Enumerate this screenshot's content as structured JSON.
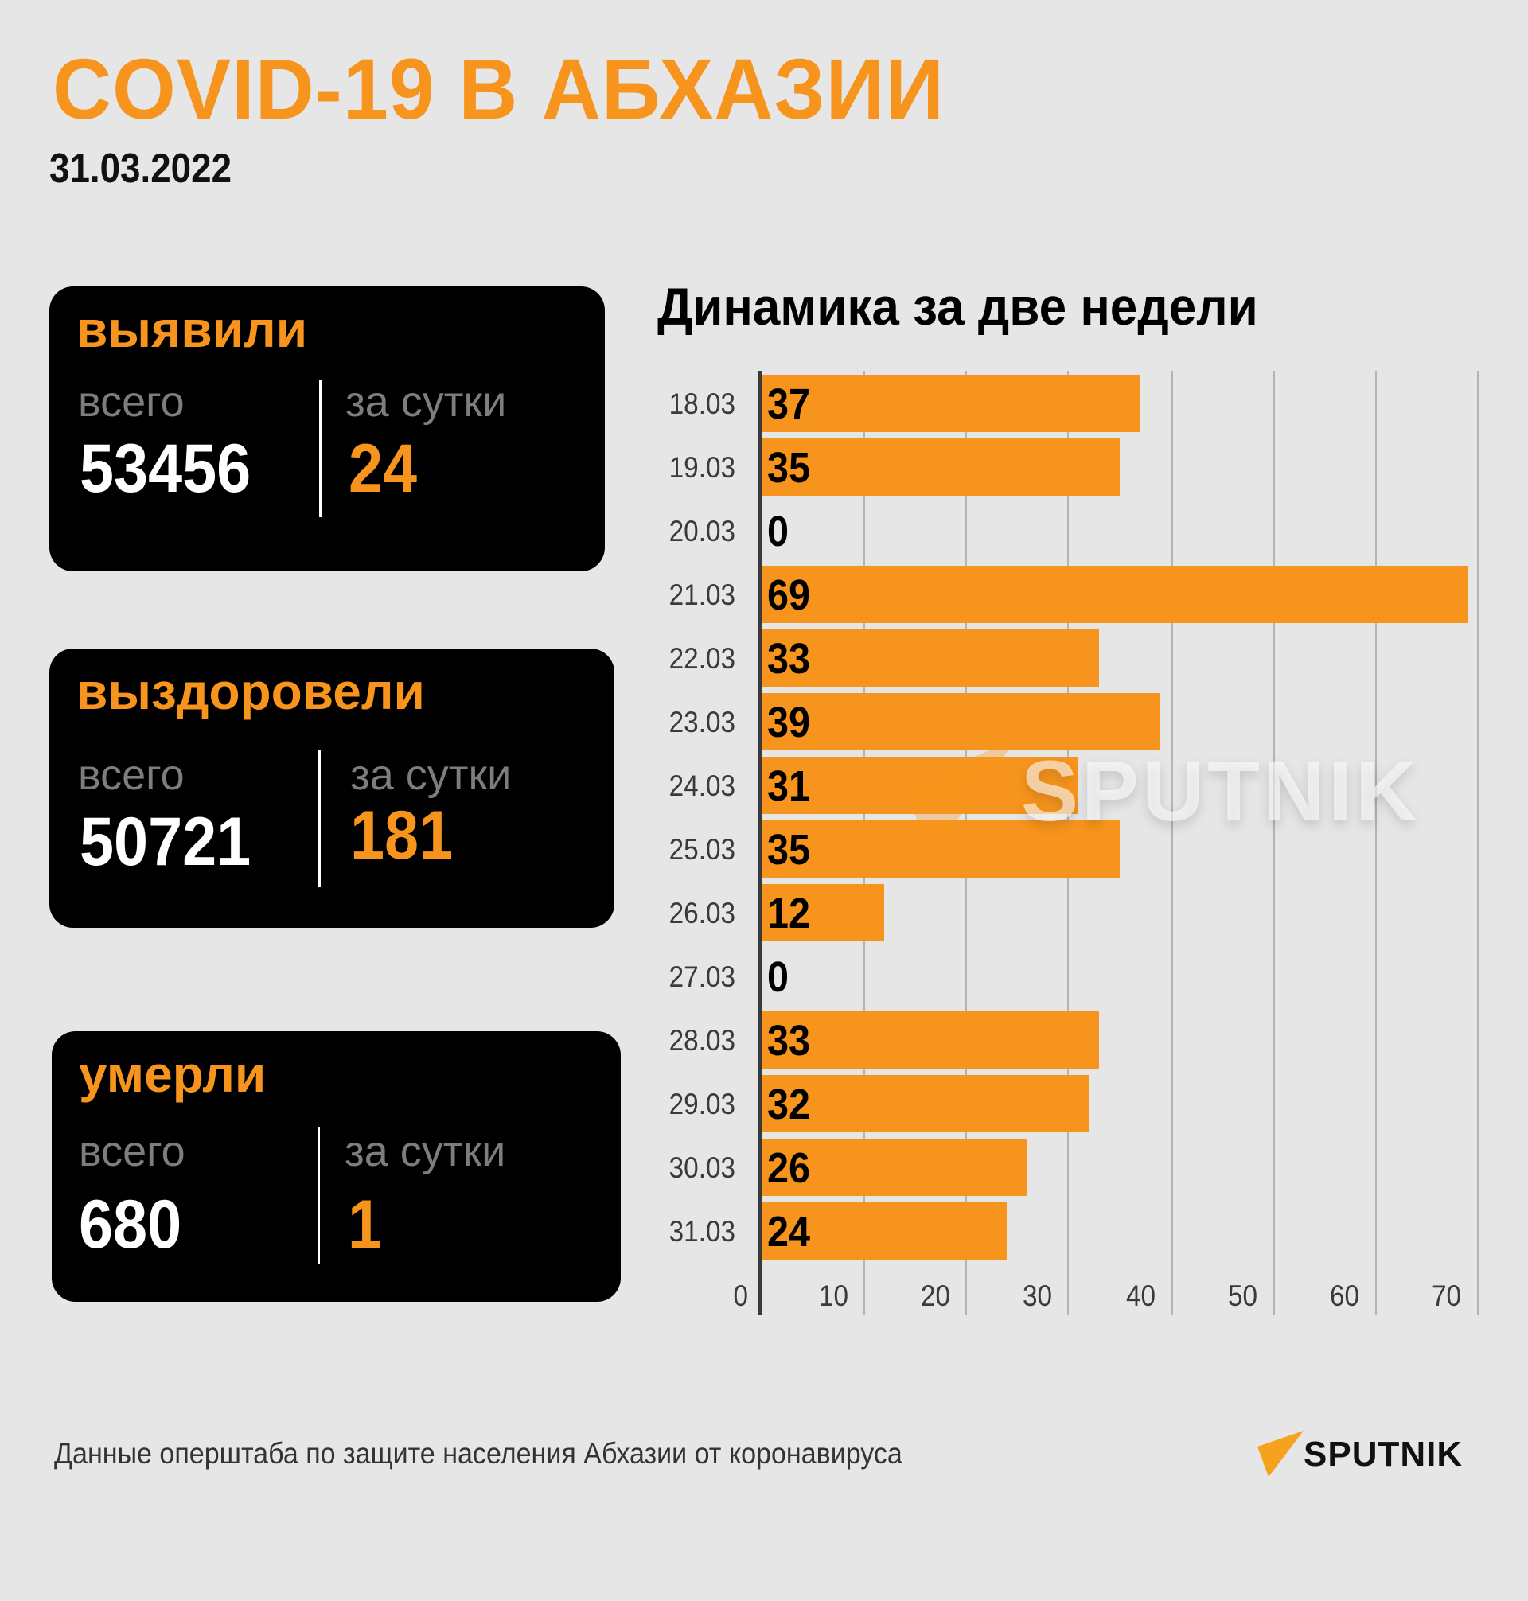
{
  "header": {
    "title": "COVID-19 В АБХАЗИИ",
    "date": "31.03.2022"
  },
  "cards": [
    {
      "title": "выявили",
      "total_label": "всего",
      "total": "53456",
      "daily_label": "за сутки",
      "daily": "24"
    },
    {
      "title": "выздоровели",
      "total_label": "всего",
      "total": "50721",
      "daily_label": "за сутки",
      "daily": "181"
    },
    {
      "title": "умерли",
      "total_label": "всего",
      "total": "680",
      "daily_label": "за сутки",
      "daily": "1"
    }
  ],
  "colors": {
    "accent": "#f7941d",
    "background": "#e6e6e6",
    "card": "#000000",
    "muted_label": "#7d7d7d"
  },
  "chart": {
    "title": "Динамика за две недели",
    "rows": [
      {
        "label": "18.03",
        "value": "37"
      },
      {
        "label": "19.03",
        "value": "35"
      },
      {
        "label": "20.03",
        "value": "0"
      },
      {
        "label": "21.03",
        "value": "69"
      },
      {
        "label": "22.03",
        "value": "33"
      },
      {
        "label": "23.03",
        "value": "39"
      },
      {
        "label": "24.03",
        "value": "31"
      },
      {
        "label": "25.03",
        "value": "35"
      },
      {
        "label": "26.03",
        "value": "12"
      },
      {
        "label": "27.03",
        "value": "0"
      },
      {
        "label": "28.03",
        "value": "33"
      },
      {
        "label": "29.03",
        "value": "32"
      },
      {
        "label": "30.03",
        "value": "26"
      },
      {
        "label": "31.03",
        "value": "24"
      }
    ],
    "ticks": [
      "0",
      "10",
      "20",
      "30",
      "40",
      "50",
      "60",
      "70"
    ]
  },
  "chart_data": {
    "type": "bar",
    "orientation": "horizontal",
    "title": "Динамика за две недели",
    "categories": [
      "18.03",
      "19.03",
      "20.03",
      "21.03",
      "22.03",
      "23.03",
      "24.03",
      "25.03",
      "26.03",
      "27.03",
      "28.03",
      "29.03",
      "30.03",
      "31.03"
    ],
    "values": [
      37,
      35,
      0,
      69,
      33,
      39,
      31,
      35,
      12,
      0,
      33,
      32,
      26,
      24
    ],
    "xlabel": "",
    "ylabel": "",
    "xlim": [
      0,
      70
    ],
    "xticks": [
      0,
      10,
      20,
      30,
      40,
      50,
      60,
      70
    ],
    "grid": true,
    "data_labels": true,
    "bar_color": "#f7941d"
  },
  "watermark": {
    "text": "SPUTNIK"
  },
  "footer": {
    "source": "Данные оперштаба по защите населения Абхазии от коронавируса",
    "logo_text": "SPUTNIK"
  }
}
